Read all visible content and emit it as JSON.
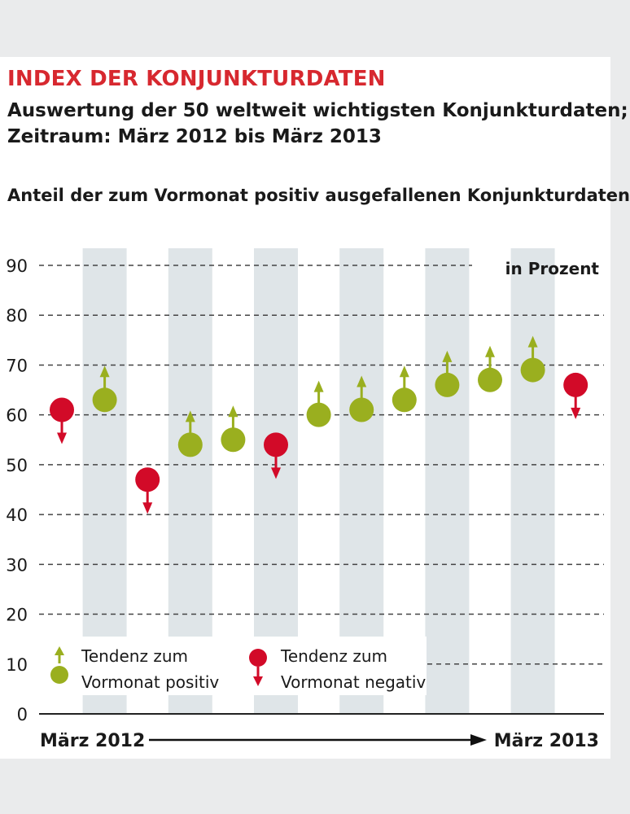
{
  "header": {
    "title": "INDEX DER KONJUNKTURDATEN",
    "subtitle_line1": "Auswertung der 50 weltweit wichtigsten Konjunkturdaten;",
    "subtitle_line2": "Zeitraum: März 2012 bis März 2013",
    "chart_heading": "Anteil der zum Vormonat positiv ausgefallenen Konjunkturdaten"
  },
  "colors": {
    "positive": "#9aaf1f",
    "negative": "#d20a28",
    "band": "#dfe5e8",
    "grid": "#444444",
    "title": "#d7282f"
  },
  "legend": {
    "positive_line1": "Tendenz zum",
    "positive_line2": "Vormonat positiv",
    "negative_line1": "Tendenz zum",
    "negative_line2": "Vormonat negativ"
  },
  "chart_data": {
    "type": "scatter",
    "unit_label": "in Prozent",
    "x_start_label": "März 2012",
    "x_end_label": "März 2013",
    "ylim": [
      0,
      90
    ],
    "y_ticks": [
      0,
      10,
      20,
      30,
      40,
      50,
      60,
      70,
      80,
      90
    ],
    "grid": true,
    "legend_position": "bottom-left",
    "points": [
      {
        "value": 61,
        "tendency": "negative"
      },
      {
        "value": 63,
        "tendency": "positive"
      },
      {
        "value": 47,
        "tendency": "negative"
      },
      {
        "value": 54,
        "tendency": "positive"
      },
      {
        "value": 55,
        "tendency": "positive"
      },
      {
        "value": 54,
        "tendency": "negative"
      },
      {
        "value": 60,
        "tendency": "positive"
      },
      {
        "value": 61,
        "tendency": "positive"
      },
      {
        "value": 63,
        "tendency": "positive"
      },
      {
        "value": 66,
        "tendency": "positive"
      },
      {
        "value": 67,
        "tendency": "positive"
      },
      {
        "value": 69,
        "tendency": "positive"
      },
      {
        "value": 66,
        "tendency": "negative"
      }
    ]
  }
}
